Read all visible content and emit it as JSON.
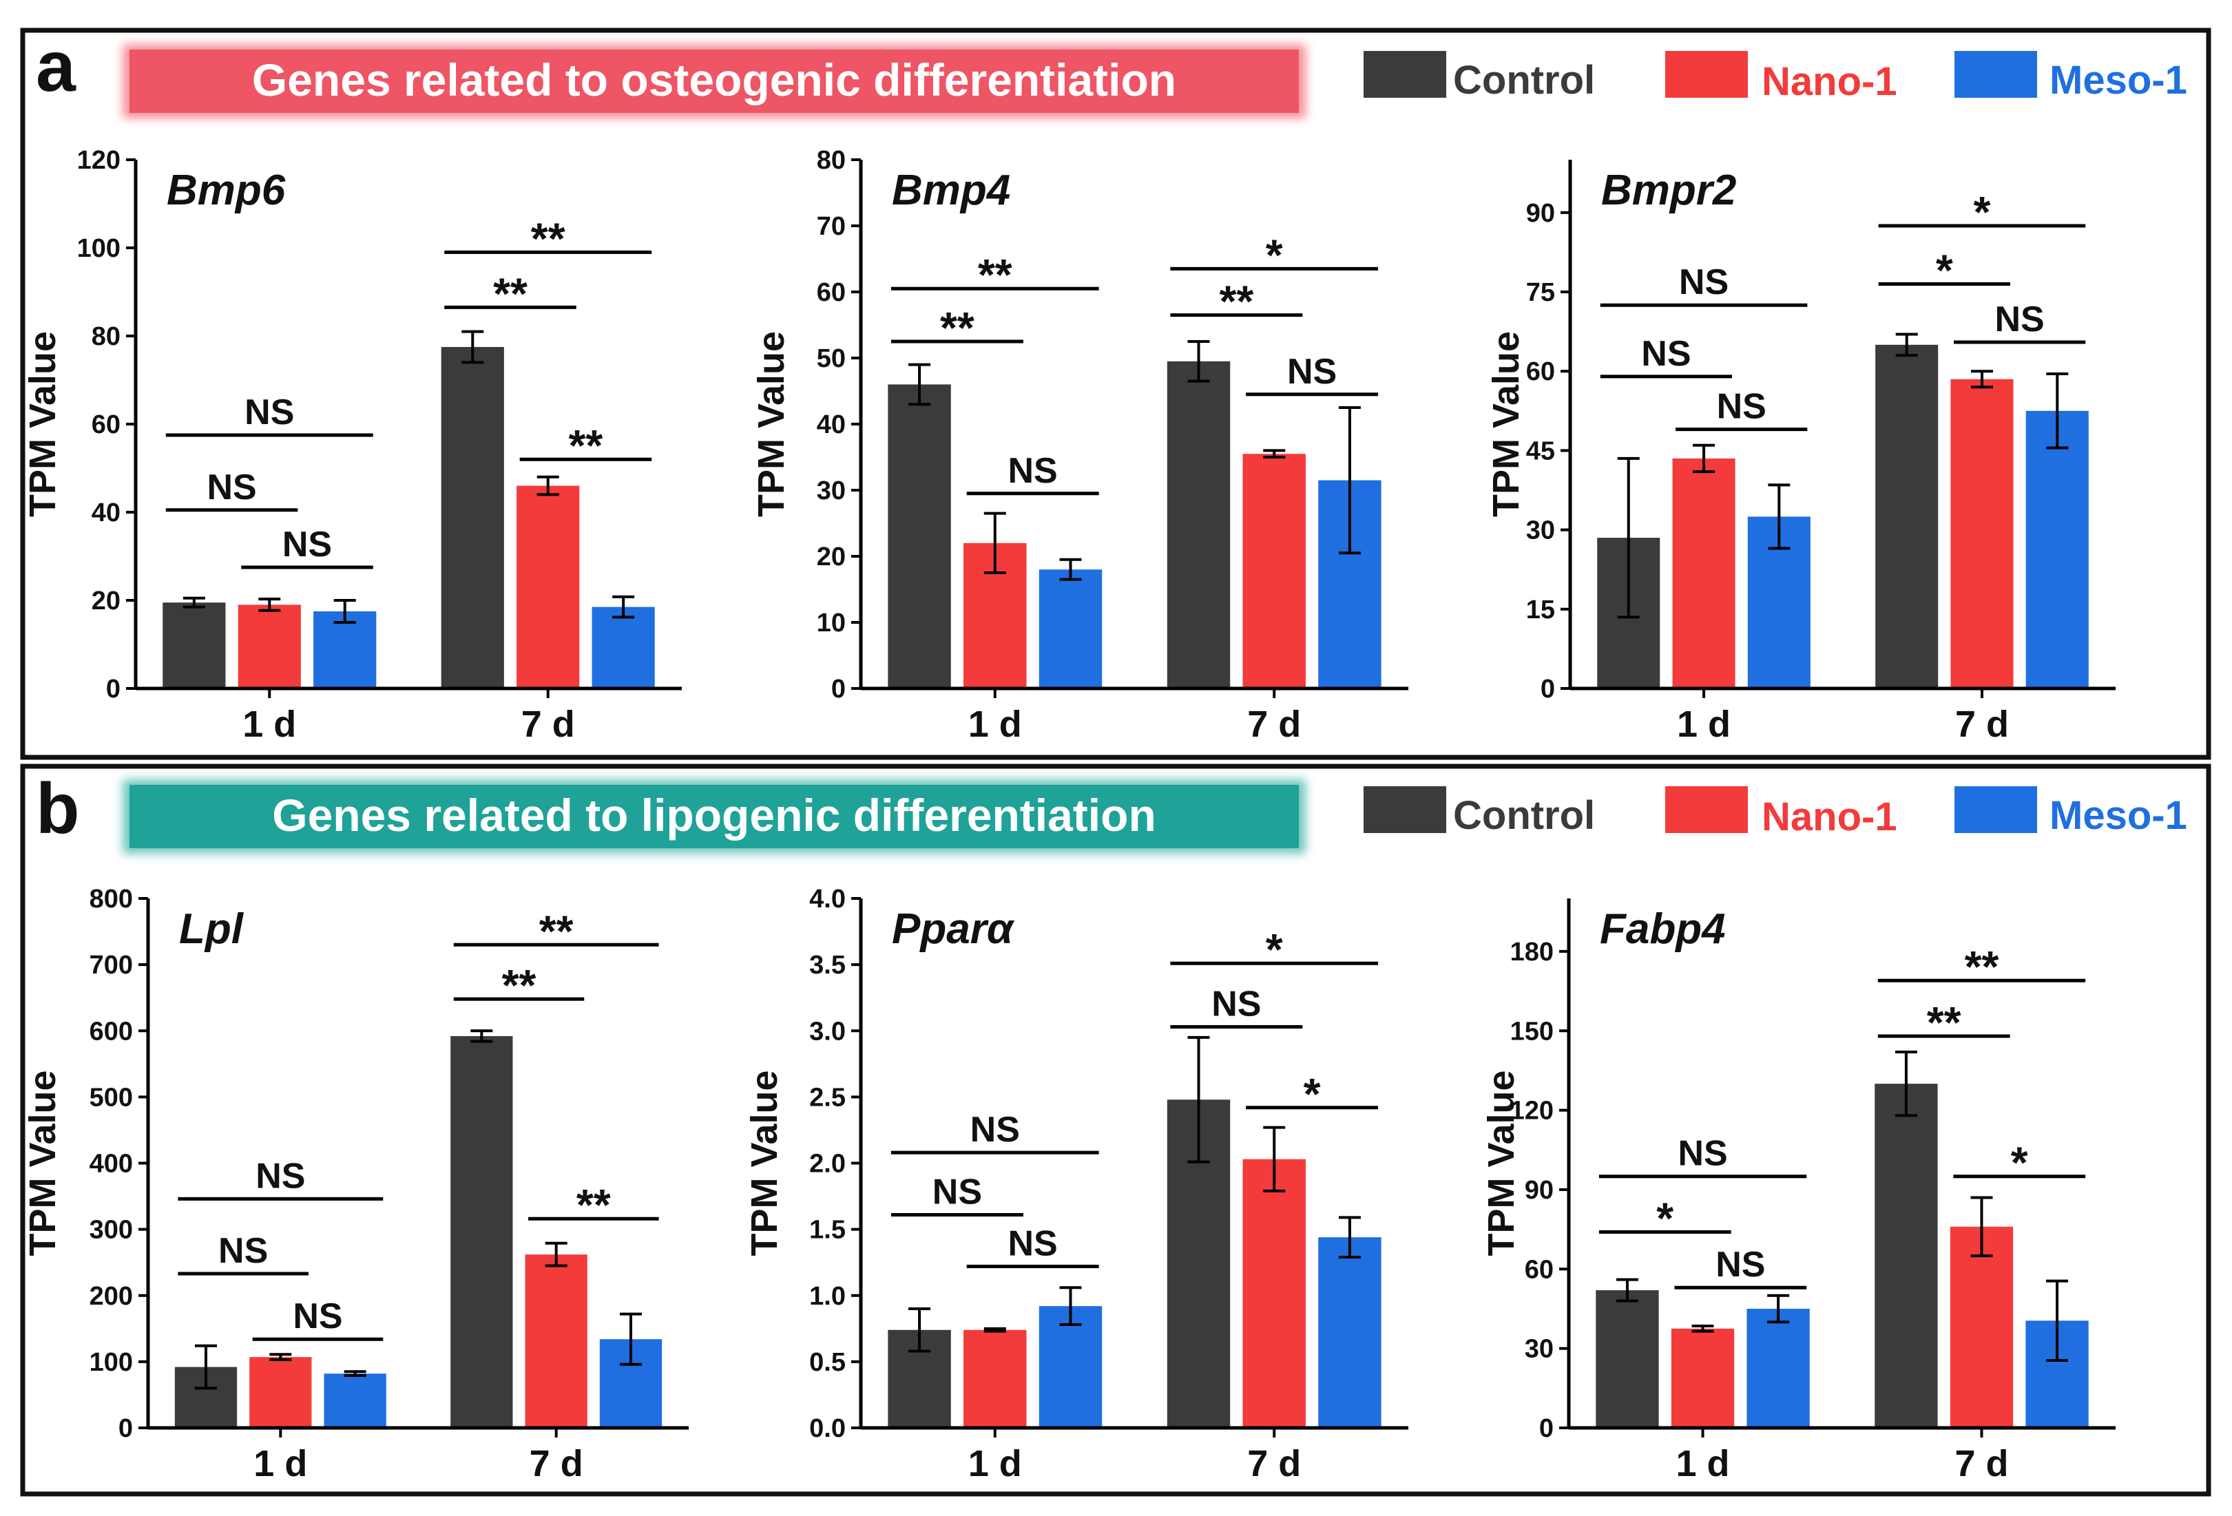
{
  "legend": [
    {
      "label": "Control",
      "color": "#3b3b3b"
    },
    {
      "label": "Nano-1",
      "color": "#f33b3b"
    },
    {
      "label": "Meso-1",
      "color": "#1f6fe0"
    }
  ],
  "panels": [
    {
      "letter": "a",
      "title": "Genes related to osteogenic differentiation"
    },
    {
      "letter": "b",
      "title": "Genes related to lipogenic differentiation"
    }
  ],
  "chart_data": [
    {
      "type": "bar",
      "title": "Bmp6",
      "ylabel": "TPM Value",
      "categories": [
        "1 d",
        "7 d"
      ],
      "ylim": [
        0,
        120
      ],
      "yticks": [
        "0",
        "20",
        "40",
        "60",
        "80",
        "100",
        "120"
      ],
      "series": [
        {
          "name": "Control",
          "values": [
            19.5,
            77.5
          ],
          "errors": [
            1.0,
            3.5
          ]
        },
        {
          "name": "Nano-1",
          "values": [
            19.0,
            46.0
          ],
          "errors": [
            1.3,
            2.0
          ]
        },
        {
          "name": "Meso-1",
          "values": [
            17.5,
            18.5
          ],
          "errors": [
            2.5,
            2.3
          ]
        }
      ],
      "significance": [
        {
          "group": 0,
          "from": 0,
          "to": 1,
          "y": 40.5,
          "label": "NS"
        },
        {
          "group": 0,
          "from": 1,
          "to": 2,
          "y": 27.5,
          "label": "NS"
        },
        {
          "group": 0,
          "from": 0,
          "to": 2,
          "y": 57.5,
          "label": "NS"
        },
        {
          "group": 1,
          "from": 0,
          "to": 1,
          "y": 86.5,
          "label": "**"
        },
        {
          "group": 1,
          "from": 1,
          "to": 2,
          "y": 52.0,
          "label": "**"
        },
        {
          "group": 1,
          "from": 0,
          "to": 2,
          "y": 99.0,
          "label": "**"
        }
      ]
    },
    {
      "type": "bar",
      "title": "Bmp4",
      "ylabel": "TPM Value",
      "categories": [
        "1 d",
        "7 d"
      ],
      "ylim": [
        0,
        80
      ],
      "yticks": [
        "0",
        "10",
        "20",
        "30",
        "40",
        "50",
        "60",
        "70",
        "80"
      ],
      "series": [
        {
          "name": "Control",
          "values": [
            46.0,
            49.5
          ],
          "errors": [
            3.0,
            3.0
          ]
        },
        {
          "name": "Nano-1",
          "values": [
            22.0,
            35.5
          ],
          "errors": [
            4.5,
            0.5
          ]
        },
        {
          "name": "Meso-1",
          "values": [
            18.0,
            31.5
          ],
          "errors": [
            1.5,
            11.0
          ]
        }
      ],
      "significance": [
        {
          "group": 0,
          "from": 0,
          "to": 1,
          "y": 52.5,
          "label": "**"
        },
        {
          "group": 0,
          "from": 1,
          "to": 2,
          "y": 29.5,
          "label": "NS"
        },
        {
          "group": 0,
          "from": 0,
          "to": 2,
          "y": 60.5,
          "label": "**"
        },
        {
          "group": 1,
          "from": 0,
          "to": 1,
          "y": 56.5,
          "label": "**"
        },
        {
          "group": 1,
          "from": 1,
          "to": 2,
          "y": 44.5,
          "label": "NS"
        },
        {
          "group": 1,
          "from": 0,
          "to": 2,
          "y": 63.5,
          "label": "*"
        }
      ]
    },
    {
      "type": "bar",
      "title": "Bmpr2",
      "ylabel": "TPM Value",
      "categories": [
        "1 d",
        "7 d"
      ],
      "ylim": [
        0,
        100
      ],
      "yticks": [
        "0",
        "15",
        "30",
        "45",
        "60",
        "75",
        "90"
      ],
      "series": [
        {
          "name": "Control",
          "values": [
            28.5,
            65.0
          ],
          "errors": [
            15.0,
            2.0
          ]
        },
        {
          "name": "Nano-1",
          "values": [
            43.5,
            58.5
          ],
          "errors": [
            2.5,
            1.5
          ]
        },
        {
          "name": "Meso-1",
          "values": [
            32.5,
            52.5
          ],
          "errors": [
            6.0,
            7.0
          ]
        }
      ],
      "significance": [
        {
          "group": 0,
          "from": 0,
          "to": 1,
          "y": 59.0,
          "label": "NS"
        },
        {
          "group": 0,
          "from": 1,
          "to": 2,
          "y": 49.0,
          "label": "NS"
        },
        {
          "group": 0,
          "from": 0,
          "to": 2,
          "y": 72.5,
          "label": "NS"
        },
        {
          "group": 1,
          "from": 0,
          "to": 1,
          "y": 76.5,
          "label": "*"
        },
        {
          "group": 1,
          "from": 1,
          "to": 2,
          "y": 65.5,
          "label": "NS"
        },
        {
          "group": 1,
          "from": 0,
          "to": 2,
          "y": 87.5,
          "label": "*"
        }
      ]
    },
    {
      "type": "bar",
      "title": "Lpl",
      "ylabel": "TPM Value",
      "categories": [
        "1 d",
        "7 d"
      ],
      "ylim": [
        0,
        800
      ],
      "yticks": [
        "0",
        "100",
        "200",
        "300",
        "400",
        "500",
        "600",
        "700",
        "800"
      ],
      "series": [
        {
          "name": "Control",
          "values": [
            92,
            592
          ],
          "errors": [
            32,
            8
          ]
        },
        {
          "name": "Nano-1",
          "values": [
            107,
            262
          ],
          "errors": [
            4,
            17
          ]
        },
        {
          "name": "Meso-1",
          "values": [
            82,
            134
          ],
          "errors": [
            3,
            38
          ]
        }
      ],
      "significance": [
        {
          "group": 0,
          "from": 0,
          "to": 1,
          "y": 233,
          "label": "NS"
        },
        {
          "group": 0,
          "from": 1,
          "to": 2,
          "y": 134,
          "label": "NS"
        },
        {
          "group": 0,
          "from": 0,
          "to": 2,
          "y": 346,
          "label": "NS"
        },
        {
          "group": 1,
          "from": 0,
          "to": 1,
          "y": 648,
          "label": "**"
        },
        {
          "group": 1,
          "from": 1,
          "to": 2,
          "y": 316,
          "label": "**"
        },
        {
          "group": 1,
          "from": 0,
          "to": 2,
          "y": 730,
          "label": "**"
        }
      ]
    },
    {
      "type": "bar",
      "title": "Pparα",
      "ylabel": "TPM Value",
      "categories": [
        "1 d",
        "7 d"
      ],
      "ylim": [
        0,
        4
      ],
      "yticks": [
        "0.0",
        "0.5",
        "1.0",
        "1.5",
        "2.0",
        "2.5",
        "3.0",
        "3.5",
        "4.0"
      ],
      "series": [
        {
          "name": "Control",
          "values": [
            0.74,
            2.48
          ],
          "errors": [
            0.16,
            0.47
          ]
        },
        {
          "name": "Nano-1",
          "values": [
            0.74,
            2.03
          ],
          "errors": [
            0.01,
            0.24
          ]
        },
        {
          "name": "Meso-1",
          "values": [
            0.92,
            1.44
          ],
          "errors": [
            0.14,
            0.15
          ]
        }
      ],
      "significance": [
        {
          "group": 0,
          "from": 0,
          "to": 1,
          "y": 1.61,
          "label": "NS"
        },
        {
          "group": 0,
          "from": 1,
          "to": 2,
          "y": 1.22,
          "label": "NS"
        },
        {
          "group": 0,
          "from": 0,
          "to": 2,
          "y": 2.08,
          "label": "NS"
        },
        {
          "group": 1,
          "from": 0,
          "to": 1,
          "y": 3.03,
          "label": "NS"
        },
        {
          "group": 1,
          "from": 1,
          "to": 2,
          "y": 2.42,
          "label": "*"
        },
        {
          "group": 1,
          "from": 0,
          "to": 2,
          "y": 3.51,
          "label": "*"
        }
      ]
    },
    {
      "type": "bar",
      "title": "Fabp4",
      "ylabel": "TPM Value",
      "categories": [
        "1 d",
        "7 d"
      ],
      "ylim": [
        0,
        200
      ],
      "yticks": [
        "0",
        "30",
        "60",
        "90",
        "120",
        "150",
        "180"
      ],
      "series": [
        {
          "name": "Control",
          "values": [
            52,
            130
          ],
          "errors": [
            4,
            12
          ]
        },
        {
          "name": "Nano-1",
          "values": [
            37.5,
            76
          ],
          "errors": [
            1,
            11
          ]
        },
        {
          "name": "Meso-1",
          "values": [
            45,
            40.5
          ],
          "errors": [
            5,
            15
          ]
        }
      ],
      "significance": [
        {
          "group": 0,
          "from": 0,
          "to": 1,
          "y": 74,
          "label": "*"
        },
        {
          "group": 0,
          "from": 1,
          "to": 2,
          "y": 53,
          "label": "NS"
        },
        {
          "group": 0,
          "from": 0,
          "to": 2,
          "y": 95,
          "label": "NS"
        },
        {
          "group": 1,
          "from": 0,
          "to": 1,
          "y": 148,
          "label": "**"
        },
        {
          "group": 1,
          "from": 1,
          "to": 2,
          "y": 95,
          "label": "*"
        },
        {
          "group": 1,
          "from": 0,
          "to": 2,
          "y": 169,
          "label": "**"
        }
      ]
    }
  ]
}
